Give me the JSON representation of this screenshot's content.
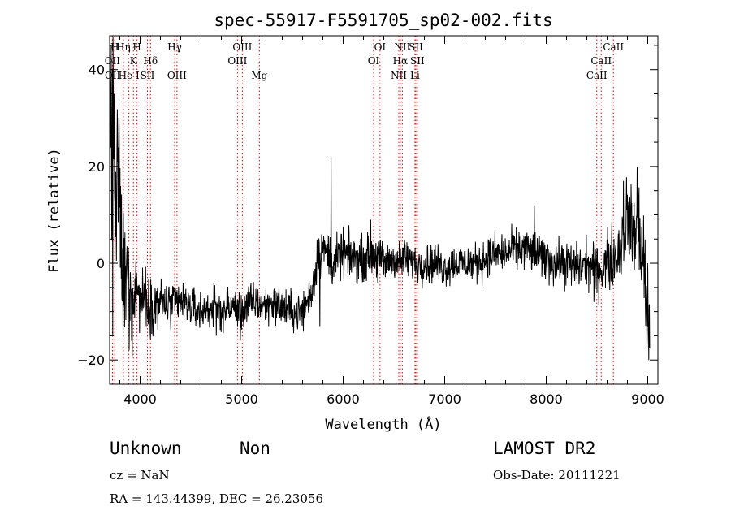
{
  "chart_data": {
    "type": "line",
    "title": "spec-55917-F5591705_sp02-002.fits",
    "xlabel": "Wavelength (Å)",
    "ylabel": "Flux (relative)",
    "xlim": [
      3700,
      9100
    ],
    "ylim": [
      -25,
      47
    ],
    "xticks": [
      4000,
      5000,
      6000,
      7000,
      8000,
      9000
    ],
    "yticks": [
      -20,
      0,
      20,
      40
    ],
    "grid": false,
    "line_color": "#000000",
    "marker_color": "#ff0000",
    "anchors": [
      [
        3700,
        40
      ],
      [
        3720,
        20
      ],
      [
        3740,
        30
      ],
      [
        3760,
        5
      ],
      [
        3780,
        22
      ],
      [
        3800,
        10
      ],
      [
        3820,
        0
      ],
      [
        3850,
        -5
      ],
      [
        3880,
        -2
      ],
      [
        3900,
        -6
      ],
      [
        3920,
        -10
      ],
      [
        3950,
        -3
      ],
      [
        4000,
        -8
      ],
      [
        4050,
        -6
      ],
      [
        4100,
        -9
      ],
      [
        4200,
        -8
      ],
      [
        4300,
        -9
      ],
      [
        4400,
        -8
      ],
      [
        4500,
        -9
      ],
      [
        4600,
        -10
      ],
      [
        4700,
        -9
      ],
      [
        4800,
        -10
      ],
      [
        4900,
        -9
      ],
      [
        5000,
        -10
      ],
      [
        5100,
        -8
      ],
      [
        5200,
        -9
      ],
      [
        5300,
        -8
      ],
      [
        5400,
        -9
      ],
      [
        5500,
        -10
      ],
      [
        5600,
        -10
      ],
      [
        5650,
        -8
      ],
      [
        5700,
        -5
      ],
      [
        5750,
        2
      ],
      [
        5800,
        3
      ],
      [
        5850,
        2
      ],
      [
        5900,
        0
      ],
      [
        6000,
        2
      ],
      [
        6100,
        1
      ],
      [
        6200,
        1
      ],
      [
        6300,
        2
      ],
      [
        6400,
        0
      ],
      [
        6500,
        1
      ],
      [
        6560,
        0
      ],
      [
        6600,
        1
      ],
      [
        6700,
        0
      ],
      [
        6800,
        0
      ],
      [
        6900,
        0
      ],
      [
        7000,
        -1
      ],
      [
        7100,
        0
      ],
      [
        7200,
        0
      ],
      [
        7300,
        0
      ],
      [
        7400,
        1
      ],
      [
        7500,
        2
      ],
      [
        7600,
        2
      ],
      [
        7700,
        3
      ],
      [
        7800,
        3
      ],
      [
        7900,
        2
      ],
      [
        8000,
        1
      ],
      [
        8100,
        0
      ],
      [
        8200,
        0
      ],
      [
        8300,
        -1
      ],
      [
        8400,
        0
      ],
      [
        8500,
        -2
      ],
      [
        8600,
        0
      ],
      [
        8700,
        2
      ],
      [
        8750,
        5
      ],
      [
        8800,
        10
      ],
      [
        8850,
        6
      ],
      [
        8900,
        8
      ],
      [
        8950,
        2
      ],
      [
        9000,
        -10
      ],
      [
        9020,
        -15
      ]
    ],
    "noise": [
      [
        3700,
        10
      ],
      [
        3800,
        8
      ],
      [
        3900,
        5
      ],
      [
        4000,
        3
      ],
      [
        4500,
        2
      ],
      [
        5600,
        2
      ],
      [
        5800,
        2.5
      ],
      [
        6500,
        2
      ],
      [
        7500,
        2
      ],
      [
        8500,
        2.5
      ],
      [
        8800,
        4
      ],
      [
        9020,
        6
      ]
    ],
    "spikes": [
      [
        3715,
        45
      ],
      [
        3730,
        -15
      ],
      [
        3745,
        35
      ],
      [
        3790,
        30
      ],
      [
        3830,
        -16
      ],
      [
        3890,
        -18
      ],
      [
        4060,
        -13
      ],
      [
        4750,
        -15
      ],
      [
        4985,
        -16
      ],
      [
        5770,
        -13
      ],
      [
        5880,
        22
      ],
      [
        6270,
        9
      ],
      [
        6340,
        -4
      ],
      [
        7880,
        12
      ],
      [
        8470,
        -8
      ],
      [
        8760,
        17
      ],
      [
        8895,
        20
      ],
      [
        8990,
        -18
      ],
      [
        9010,
        -20
      ]
    ],
    "lines": [
      {
        "label": "OII",
        "wavelength": 3727,
        "row": 1
      },
      {
        "label": "OII",
        "wavelength": 3729,
        "row": 2
      },
      {
        "label": "H",
        "wavelength": 3750,
        "row": 0
      },
      {
        "label": "Hη",
        "wavelength": 3835,
        "row": 0
      },
      {
        "label": "He I",
        "wavelength": 3889,
        "row": 2
      },
      {
        "label": "K",
        "wavelength": 3934,
        "row": 1
      },
      {
        "label": "H",
        "wavelength": 3969,
        "row": 0
      },
      {
        "label": "SII",
        "wavelength": 4072,
        "row": 2
      },
      {
        "label": "Hδ",
        "wavelength": 4102,
        "row": 1
      },
      {
        "label": "Hγ",
        "wavelength": 4340,
        "row": 0
      },
      {
        "label": "OIII",
        "wavelength": 4363,
        "row": 2
      },
      {
        "label": "OIII",
        "wavelength": 4959,
        "row": 1
      },
      {
        "label": "OIII",
        "wavelength": 5007,
        "row": 0
      },
      {
        "label": "Mg",
        "wavelength": 5175,
        "row": 2
      },
      {
        "label": "OI",
        "wavelength": 6300,
        "row": 1
      },
      {
        "label": "OI",
        "wavelength": 6363,
        "row": 0
      },
      {
        "label": "NII",
        "wavelength": 6548,
        "row": 2
      },
      {
        "label": "Hα",
        "wavelength": 6563,
        "row": 1
      },
      {
        "label": "NII",
        "wavelength": 6583,
        "row": 0
      },
      {
        "label": "Li",
        "wavelength": 6707,
        "row": 2
      },
      {
        "label": "SII",
        "wavelength": 6716,
        "row": 0
      },
      {
        "label": "SII",
        "wavelength": 6731,
        "row": 1
      },
      {
        "label": "CaII",
        "wavelength": 8498,
        "row": 2
      },
      {
        "label": "CaII",
        "wavelength": 8542,
        "row": 1
      },
      {
        "label": "CaII",
        "wavelength": 8662,
        "row": 0
      }
    ]
  },
  "info": {
    "class": "Unknown",
    "subclass": "Non",
    "survey": "LAMOST DR2",
    "cz": "cz = NaN",
    "obs_date": "Obs-Date: 20111221",
    "coords": "RA = 143.44399, DEC =  26.23056"
  }
}
